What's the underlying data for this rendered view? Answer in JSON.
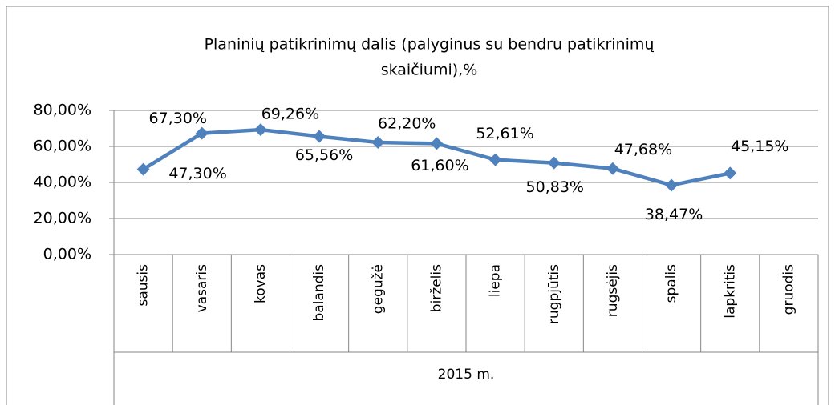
{
  "chart_data": {
    "type": "line",
    "title": [
      "Planinių patikrinimų dalis (palyginus su bendru patikrinimų",
      "skaičiumi),%"
    ],
    "categories": [
      "sausis",
      "vasaris",
      "kovas",
      "balandis",
      "gegužė",
      "birželis",
      "liepa",
      "rugpjūtis",
      "rugsėjis",
      "spalis",
      "lapkritis",
      "gruodis"
    ],
    "x_group_label": "2015 m.",
    "series": [
      {
        "color": "#4f81bd",
        "values": [
          47.3,
          67.3,
          69.26,
          65.56,
          62.2,
          61.6,
          52.61,
          50.83,
          47.68,
          38.47,
          45.15,
          null
        ],
        "value_labels": [
          "47,30%",
          "67,30%",
          "69,26%",
          "65,56%",
          "62,20%",
          "61,60%",
          "52,61%",
          "50,83%",
          "47,68%",
          "38,47%",
          "45,15%",
          null
        ]
      }
    ],
    "ylim": [
      0,
      80
    ],
    "yticks": [
      {
        "value": 0,
        "label": "0,00%"
      },
      {
        "value": 20,
        "label": "20,00%"
      },
      {
        "value": 40,
        "label": "40,00%"
      },
      {
        "value": 60,
        "label": "60,00%"
      },
      {
        "value": 80,
        "label": "80,00%"
      }
    ],
    "grid": true
  }
}
